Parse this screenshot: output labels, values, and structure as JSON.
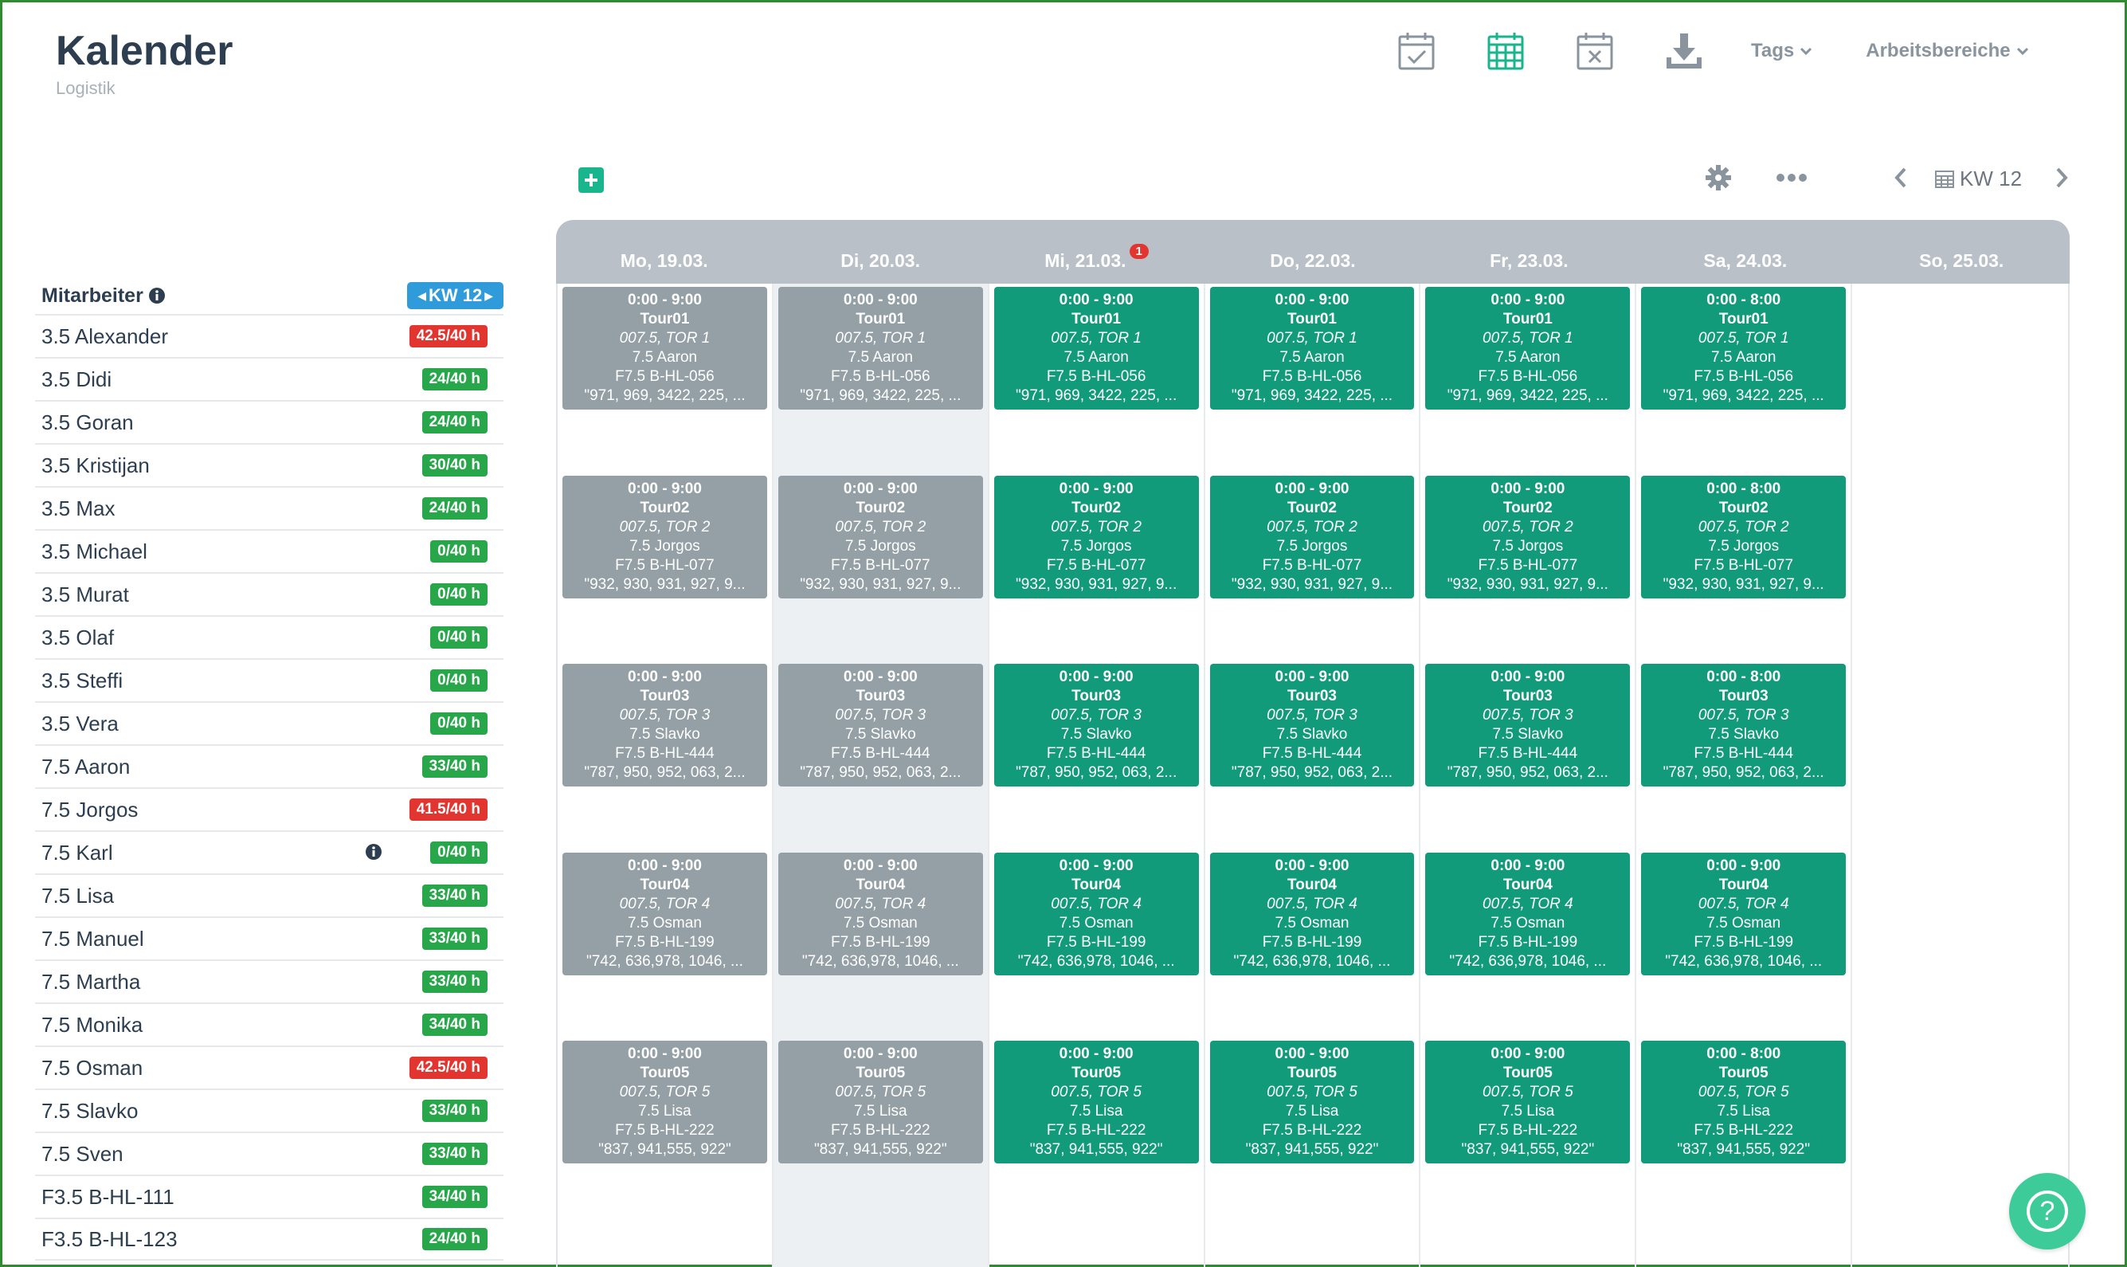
{
  "header": {
    "title": "Kalender",
    "subtitle": "Logistik",
    "menus": [
      {
        "label": "Tags"
      },
      {
        "label": "Arbeitsbereiche"
      }
    ],
    "icons": [
      "calendar-check-icon",
      "calendar-grid-icon",
      "calendar-x-icon",
      "download-icon"
    ],
    "accent": "#19b58c"
  },
  "toolbar": {
    "week_label": "KW 12"
  },
  "employees": {
    "header": "Mitarbeiter",
    "week_badge": "KW 12",
    "rows": [
      {
        "name": "3.5 Alexander",
        "hours": "42.5/40 h",
        "status": "over"
      },
      {
        "name": "3.5 Didi",
        "hours": "24/40 h",
        "status": "ok"
      },
      {
        "name": "3.5 Goran",
        "hours": "24/40 h",
        "status": "ok"
      },
      {
        "name": "3.5 Kristijan",
        "hours": "30/40 h",
        "status": "ok"
      },
      {
        "name": "3.5 Max",
        "hours": "24/40 h",
        "status": "ok"
      },
      {
        "name": "3.5 Michael",
        "hours": "0/40 h",
        "status": "ok"
      },
      {
        "name": "3.5 Murat",
        "hours": "0/40 h",
        "status": "ok"
      },
      {
        "name": "3.5 Olaf",
        "hours": "0/40 h",
        "status": "ok"
      },
      {
        "name": "3.5 Steffi",
        "hours": "0/40 h",
        "status": "ok"
      },
      {
        "name": "3.5 Vera",
        "hours": "0/40 h",
        "status": "ok"
      },
      {
        "name": "7.5 Aaron",
        "hours": "33/40 h",
        "status": "ok"
      },
      {
        "name": "7.5 Jorgos",
        "hours": "41.5/40 h",
        "status": "over"
      },
      {
        "name": "7.5 Karl",
        "hours": "0/40 h",
        "status": "ok",
        "info": true
      },
      {
        "name": "7.5 Lisa",
        "hours": "33/40 h",
        "status": "ok"
      },
      {
        "name": "7.5 Manuel",
        "hours": "33/40 h",
        "status": "ok"
      },
      {
        "name": "7.5 Martha",
        "hours": "33/40 h",
        "status": "ok"
      },
      {
        "name": "7.5 Monika",
        "hours": "34/40 h",
        "status": "ok"
      },
      {
        "name": "7.5 Osman",
        "hours": "42.5/40 h",
        "status": "over"
      },
      {
        "name": "7.5 Slavko",
        "hours": "33/40 h",
        "status": "ok"
      },
      {
        "name": "7.5 Sven",
        "hours": "33/40 h",
        "status": "ok"
      },
      {
        "name": "F3.5 B-HL-111",
        "hours": "34/40 h",
        "status": "ok"
      },
      {
        "name": "F3.5 B-HL-123",
        "hours": "24/40 h",
        "status": "ok"
      }
    ]
  },
  "calendar": {
    "days": [
      {
        "label": "Mo, 19.03.",
        "state": "past"
      },
      {
        "label": "Di, 20.03.",
        "state": "past",
        "today": true
      },
      {
        "label": "Mi, 21.03.",
        "state": "cur",
        "notification": "1"
      },
      {
        "label": "Do, 22.03.",
        "state": "cur"
      },
      {
        "label": "Fr, 23.03.",
        "state": "cur"
      },
      {
        "label": "Sa, 24.03.",
        "state": "cur",
        "saturday": true
      },
      {
        "label": "So, 25.03.",
        "state": "none"
      }
    ],
    "tours": [
      {
        "time": "0:00 - 9:00",
        "time_sat": "0:00 - 8:00",
        "tour": "Tour01",
        "tor": "007.5, TOR 1",
        "driver": "7.5 Aaron",
        "vehicle": "F7.5 B-HL-056",
        "stops": "\"971, 969, 3422, 225, ..."
      },
      {
        "time": "0:00 - 9:00",
        "time_sat": "0:00 - 8:00",
        "tour": "Tour02",
        "tor": "007.5, TOR 2",
        "driver": "7.5 Jorgos",
        "vehicle": "F7.5 B-HL-077",
        "stops": "\"932, 930, 931, 927, 9..."
      },
      {
        "time": "0:00 - 9:00",
        "time_sat": "0:00 - 8:00",
        "tour": "Tour03",
        "tor": "007.5, TOR 3",
        "driver": "7.5 Slavko",
        "vehicle": "F7.5 B-HL-444",
        "stops": "\"787, 950, 952, 063, 2..."
      },
      {
        "time": "0:00 - 9:00",
        "time_sat": "0:00 - 9:00",
        "tour": "Tour04",
        "tor": "007.5, TOR 4",
        "driver": "7.5 Osman",
        "vehicle": "F7.5 B-HL-199",
        "stops": "\"742, 636,978, 1046, ..."
      },
      {
        "time": "0:00 - 9:00",
        "time_sat": "0:00 - 8:00",
        "tour": "Tour05",
        "tor": "007.5, TOR 5",
        "driver": "7.5 Lisa",
        "vehicle": "F7.5 B-HL-222",
        "stops": "\"837, 941,555, 922\""
      }
    ]
  },
  "help": {
    "label": "?"
  }
}
